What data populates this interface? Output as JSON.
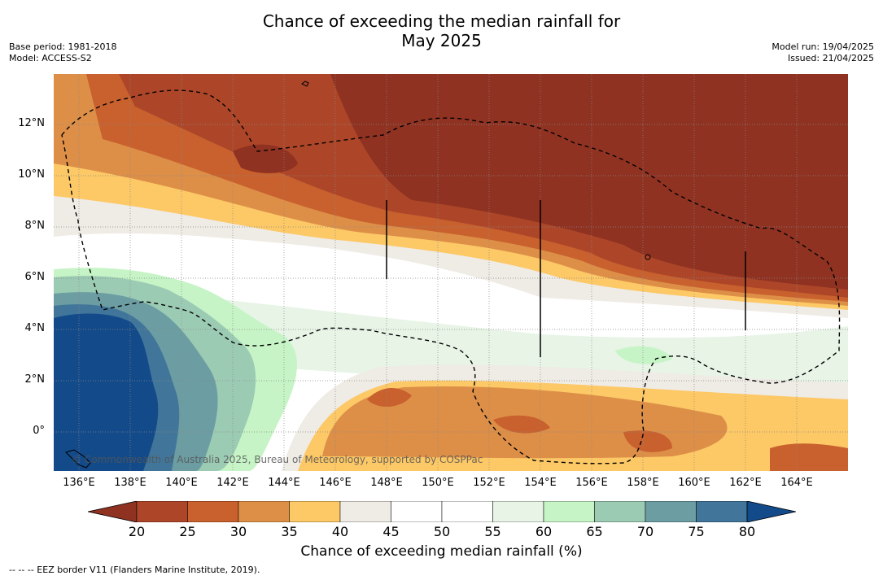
{
  "title_line1": "Chance of exceeding the median rainfall for",
  "title_line2": "May 2025",
  "meta_left": [
    "Base period: 1981-2018",
    "Model: ACCESS-S2"
  ],
  "meta_right": [
    "Model run: 19/04/2025",
    "Issued: 21/04/2025"
  ],
  "copyright": "© Commonwealth of Australia 2025, Bureau of Meteorology, supported by COSPPac",
  "x_ticks": [
    "136°E",
    "138°E",
    "140°E",
    "142°E",
    "144°E",
    "146°E",
    "148°E",
    "150°E",
    "152°E",
    "154°E",
    "156°E",
    "158°E",
    "160°E",
    "162°E",
    "164°E"
  ],
  "y_ticks": [
    "12°N",
    "10°N",
    "8°N",
    "6°N",
    "4°N",
    "2°N",
    "0°"
  ],
  "colorbar": {
    "ticks": [
      "20",
      "25",
      "30",
      "35",
      "40",
      "45",
      "50",
      "55",
      "60",
      "65",
      "70",
      "75",
      "80"
    ],
    "colors": [
      "#8f3222",
      "#ad4628",
      "#c8612e",
      "#dd8f48",
      "#fdc866",
      "#efebe5",
      "#ffffff",
      "#ffffff",
      "#e7f4e6",
      "#c6f4c6",
      "#9ccbb4",
      "#6c9da2",
      "#41769a",
      "#134a8a"
    ],
    "label": "Chance of exceeding median rainfall (%)"
  },
  "footnote": "--  --  -- EEZ border V11 (Flanders Marine Institute, 2019).",
  "map_data": {
    "lon_range": [
      135,
      166
    ],
    "lat_range": [
      -1.5,
      14
    ],
    "bands_by_lat": [
      {
        "lat_max": 14,
        "lat_min": 12,
        "value": "20-30"
      },
      {
        "lat_max": 12,
        "lat_min": 7,
        "value": "20-25"
      },
      {
        "lat_max": 7,
        "lat_min": 5,
        "value": "35-45"
      },
      {
        "lat_max": 5,
        "lat_min": 2.5,
        "value": "45-60"
      },
      {
        "lat_max": 2.5,
        "lat_min": 0,
        "value": "30-40"
      },
      {
        "lat_max": 0,
        "lat_min": -1.5,
        "value": "35-40"
      }
    ],
    "wet_region": {
      "lon": [
        135,
        143
      ],
      "lat": [
        -1.5,
        5
      ],
      "value": "65-80"
    }
  }
}
